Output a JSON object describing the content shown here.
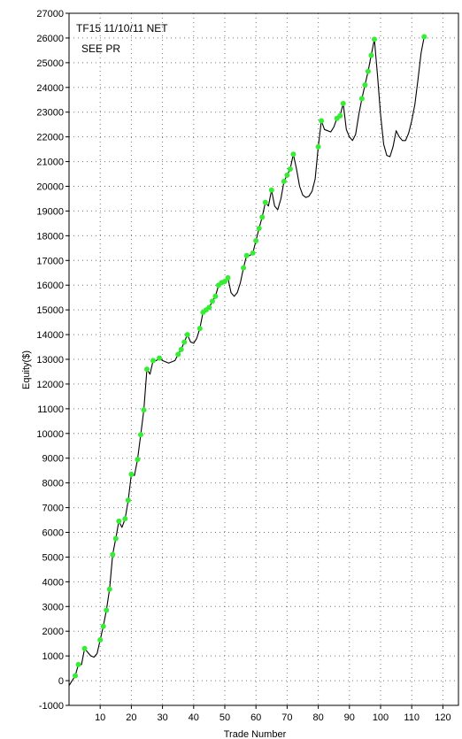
{
  "chart_data": {
    "type": "line",
    "title": "",
    "annotations": [
      "TF15 11/10/11 NET",
      "SEE PR"
    ],
    "xlabel": "Trade Number",
    "ylabel": "Equity($)",
    "xlim": [
      0,
      125
    ],
    "ylim": [
      -1000,
      27000
    ],
    "x_ticks": [
      10,
      20,
      30,
      40,
      50,
      60,
      70,
      80,
      90,
      100,
      110,
      120
    ],
    "y_ticks": [
      -1000,
      0,
      1000,
      2000,
      3000,
      4000,
      5000,
      6000,
      7000,
      8000,
      9000,
      10000,
      11000,
      12000,
      13000,
      14000,
      15000,
      16000,
      17000,
      18000,
      19000,
      20000,
      21000,
      22000,
      23000,
      24000,
      25000,
      26000,
      27000
    ],
    "grid": true,
    "line_color": "#000000",
    "marker_color": "#33ee33",
    "series": [
      {
        "values": [
          [
            0,
            -200
          ],
          [
            1,
            0
          ],
          [
            2,
            200
          ],
          [
            3,
            650
          ],
          [
            4,
            650
          ],
          [
            5,
            1300
          ],
          [
            6,
            1150
          ],
          [
            7,
            1000
          ],
          [
            8,
            950
          ],
          [
            9,
            1100
          ],
          [
            10,
            1650
          ],
          [
            11,
            2200
          ],
          [
            12,
            2850
          ],
          [
            13,
            3700
          ],
          [
            14,
            5100
          ],
          [
            15,
            5750
          ],
          [
            16,
            6450
          ],
          [
            17,
            6200
          ],
          [
            18,
            6550
          ],
          [
            19,
            7300
          ],
          [
            20,
            8350
          ],
          [
            21,
            8300
          ],
          [
            22,
            8950
          ],
          [
            23,
            9950
          ],
          [
            24,
            10950
          ],
          [
            25,
            12600
          ],
          [
            26,
            12400
          ],
          [
            27,
            12950
          ],
          [
            28,
            12950
          ],
          [
            29,
            13050
          ],
          [
            30,
            12950
          ],
          [
            32,
            12850
          ],
          [
            34,
            12950
          ],
          [
            35,
            13200
          ],
          [
            36,
            13400
          ],
          [
            37,
            13700
          ],
          [
            38,
            14000
          ],
          [
            39,
            13700
          ],
          [
            40,
            13650
          ],
          [
            41,
            13850
          ],
          [
            42,
            14250
          ],
          [
            43,
            14900
          ],
          [
            44,
            15000
          ],
          [
            45,
            15100
          ],
          [
            46,
            15350
          ],
          [
            47,
            15550
          ],
          [
            48,
            16000
          ],
          [
            49,
            16100
          ],
          [
            50,
            16150
          ],
          [
            51,
            16300
          ],
          [
            52,
            15700
          ],
          [
            53,
            15550
          ],
          [
            54,
            15700
          ],
          [
            55,
            16100
          ],
          [
            56,
            16700
          ],
          [
            57,
            17200
          ],
          [
            58,
            17200
          ],
          [
            59,
            17300
          ],
          [
            60,
            17800
          ],
          [
            61,
            18300
          ],
          [
            62,
            18750
          ],
          [
            63,
            19350
          ],
          [
            64,
            19200
          ],
          [
            65,
            19850
          ],
          [
            66,
            19200
          ],
          [
            67,
            19050
          ],
          [
            68,
            19500
          ],
          [
            69,
            20200
          ],
          [
            70,
            20450
          ],
          [
            71,
            20700
          ],
          [
            72,
            21300
          ],
          [
            73,
            20700
          ],
          [
            74,
            20000
          ],
          [
            75,
            19650
          ],
          [
            76,
            19550
          ],
          [
            77,
            19600
          ],
          [
            78,
            19800
          ],
          [
            79,
            20300
          ],
          [
            80,
            21600
          ],
          [
            81,
            22650
          ],
          [
            82,
            22300
          ],
          [
            83,
            22250
          ],
          [
            84,
            22200
          ],
          [
            85,
            22400
          ],
          [
            86,
            22750
          ],
          [
            87,
            22850
          ],
          [
            88,
            23350
          ],
          [
            89,
            22300
          ],
          [
            90,
            22000
          ],
          [
            91,
            21850
          ],
          [
            92,
            22100
          ],
          [
            93,
            22900
          ],
          [
            94,
            23550
          ],
          [
            95,
            24100
          ],
          [
            96,
            24650
          ],
          [
            97,
            25300
          ],
          [
            98,
            25950
          ],
          [
            99,
            24500
          ],
          [
            100,
            22900
          ],
          [
            101,
            21700
          ],
          [
            102,
            21250
          ],
          [
            103,
            21200
          ],
          [
            104,
            21600
          ],
          [
            105,
            22250
          ],
          [
            106,
            22000
          ],
          [
            107,
            21850
          ],
          [
            108,
            21850
          ],
          [
            109,
            22150
          ],
          [
            110,
            22650
          ],
          [
            111,
            23300
          ],
          [
            112,
            24300
          ],
          [
            113,
            25400
          ],
          [
            114,
            26050
          ]
        ],
        "markers": [
          [
            2,
            200
          ],
          [
            3,
            650
          ],
          [
            5,
            1300
          ],
          [
            10,
            1650
          ],
          [
            11,
            2200
          ],
          [
            12,
            2850
          ],
          [
            13,
            3700
          ],
          [
            14,
            5100
          ],
          [
            15,
            5750
          ],
          [
            16,
            6450
          ],
          [
            18,
            6550
          ],
          [
            19,
            7300
          ],
          [
            20,
            8350
          ],
          [
            22,
            8950
          ],
          [
            23,
            9950
          ],
          [
            24,
            10950
          ],
          [
            25,
            12600
          ],
          [
            27,
            12950
          ],
          [
            29,
            13050
          ],
          [
            35,
            13200
          ],
          [
            36,
            13400
          ],
          [
            37,
            13700
          ],
          [
            38,
            14000
          ],
          [
            42,
            14250
          ],
          [
            43,
            14900
          ],
          [
            44,
            15000
          ],
          [
            45,
            15100
          ],
          [
            46,
            15350
          ],
          [
            47,
            15550
          ],
          [
            48,
            16000
          ],
          [
            49,
            16100
          ],
          [
            50,
            16150
          ],
          [
            51,
            16300
          ],
          [
            56,
            16700
          ],
          [
            57,
            17200
          ],
          [
            59,
            17300
          ],
          [
            60,
            17800
          ],
          [
            61,
            18300
          ],
          [
            62,
            18750
          ],
          [
            63,
            19350
          ],
          [
            65,
            19850
          ],
          [
            69,
            20200
          ],
          [
            70,
            20450
          ],
          [
            71,
            20700
          ],
          [
            72,
            21300
          ],
          [
            80,
            21600
          ],
          [
            81,
            22650
          ],
          [
            86,
            22750
          ],
          [
            87,
            22850
          ],
          [
            88,
            23350
          ],
          [
            94,
            23550
          ],
          [
            95,
            24100
          ],
          [
            96,
            24650
          ],
          [
            97,
            25300
          ],
          [
            98,
            25950
          ],
          [
            114,
            26050
          ]
        ]
      }
    ]
  }
}
